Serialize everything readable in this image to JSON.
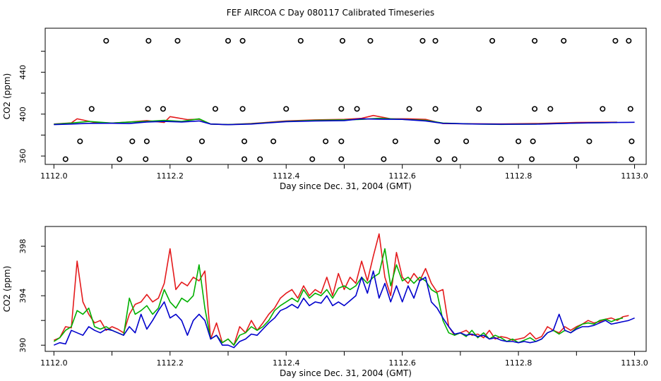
{
  "title": "FEF AIRCOA C  Day 080117  Calibrated Timeseries",
  "chart_data": [
    {
      "type": "scatter",
      "title": "FEF AIRCOA C  Day 080117  Calibrated Timeseries",
      "xlabel": "Day since Dec. 31, 2004 (GMT)",
      "ylabel": "CO2 (ppm)",
      "xlim": [
        1111.985,
        1113.02
      ],
      "ylim": [
        352,
        482
      ],
      "xticks": [
        "1112.0",
        "1112.2",
        "1112.4",
        "1112.6",
        "1112.8",
        "1113.0"
      ],
      "yticks": [
        "360",
        "400",
        "440"
      ],
      "grid": false,
      "series": [
        {
          "color": "#e41a1c",
          "kind": "line",
          "x": [
            1112.0,
            1112.03,
            1112.04,
            1112.07,
            1112.1,
            1112.13,
            1112.16,
            1112.19,
            1112.2,
            1112.23,
            1112.25,
            1112.27,
            1112.3,
            1112.34,
            1112.4,
            1112.45,
            1112.5,
            1112.53,
            1112.55,
            1112.58,
            1112.61,
            1112.64,
            1112.67,
            1112.72,
            1112.77,
            1112.83,
            1112.9,
            1112.97
          ],
          "y": [
            390.5,
            391.6,
            395.5,
            392,
            391.5,
            392.5,
            393.8,
            392,
            397.6,
            394.8,
            395.2,
            390.5,
            390,
            391,
            393.5,
            394.5,
            395,
            396,
            398.7,
            395.5,
            395.5,
            395,
            391,
            390.8,
            390.6,
            391,
            392,
            392.3
          ]
        },
        {
          "color": "#00b000",
          "kind": "line",
          "x": [
            1112.0,
            1112.03,
            1112.06,
            1112.1,
            1112.13,
            1112.16,
            1112.19,
            1112.22,
            1112.25,
            1112.27,
            1112.3,
            1112.34,
            1112.4,
            1112.45,
            1112.5,
            1112.53,
            1112.56,
            1112.6,
            1112.64,
            1112.67,
            1112.72,
            1112.77,
            1112.83,
            1112.9,
            1112.97
          ],
          "y": [
            390.3,
            391.5,
            393,
            391.5,
            392.5,
            393,
            394,
            393,
            395.5,
            390.5,
            390,
            390.8,
            393,
            394,
            394.5,
            395,
            396,
            395,
            394,
            391.5,
            390.6,
            390.2,
            390.5,
            391.5,
            392
          ]
        },
        {
          "color": "#0000cc",
          "kind": "line",
          "x": [
            1112.0,
            1112.03,
            1112.06,
            1112.1,
            1112.13,
            1112.16,
            1112.19,
            1112.22,
            1112.25,
            1112.27,
            1112.3,
            1112.34,
            1112.4,
            1112.45,
            1112.5,
            1112.53,
            1112.56,
            1112.6,
            1112.64,
            1112.67,
            1112.72,
            1112.77,
            1112.83,
            1112.9,
            1112.97,
            1113.0
          ],
          "y": [
            390,
            390.5,
            391.2,
            391.3,
            391,
            392.5,
            393,
            392.5,
            393.5,
            390.5,
            389.9,
            390.5,
            392.8,
            393.5,
            393.8,
            395.5,
            395.2,
            395,
            393.5,
            391.2,
            390.6,
            390.3,
            390.4,
            391.5,
            392,
            392.2
          ]
        },
        {
          "color": "#000000",
          "kind": "points",
          "x": [
            1112.09,
            1112.163,
            1112.213,
            1112.3,
            1112.325,
            1112.425,
            1112.497,
            1112.545,
            1112.635,
            1112.657,
            1112.755,
            1112.828,
            1112.878,
            1112.967,
            1112.99,
            1112.065,
            1112.162,
            1112.188,
            1112.278,
            1112.325,
            1112.4,
            1112.495,
            1112.522,
            1112.612,
            1112.657,
            1112.732,
            1112.828,
            1112.855,
            1112.945,
            1112.993,
            1112.045,
            1112.135,
            1112.16,
            1112.255,
            1112.328,
            1112.378,
            1112.468,
            1112.495,
            1112.588,
            1112.66,
            1112.71,
            1112.8,
            1112.825,
            1112.922,
            1112.995,
            1112.02,
            1112.113,
            1112.158,
            1112.233,
            1112.328,
            1112.355,
            1112.445,
            1112.495,
            1112.568,
            1112.663,
            1112.69,
            1112.77,
            1112.823,
            1112.9,
            1112.995
          ],
          "y": [
            470,
            470,
            470,
            470,
            470,
            470,
            470,
            470,
            470,
            470,
            470,
            470,
            470,
            470,
            470,
            405,
            405,
            405,
            405,
            405,
            405,
            405,
            405,
            405,
            405,
            405,
            405,
            405,
            405,
            405,
            374,
            374,
            374,
            374,
            374,
            374,
            374,
            374,
            374,
            374,
            374,
            374,
            374,
            374,
            374,
            357,
            357,
            357,
            357,
            357,
            357,
            357,
            357,
            357,
            357,
            357,
            357,
            357,
            357,
            357
          ]
        }
      ]
    },
    {
      "type": "line",
      "xlabel": "Day since Dec. 31, 2004 (GMT)",
      "ylabel": "CO2 (ppm)",
      "xlim": [
        1111.985,
        1113.02
      ],
      "ylim": [
        389.5,
        399.6
      ],
      "xticks": [
        "1112.0",
        "1112.2",
        "1112.4",
        "1112.6",
        "1112.8",
        "1113.0"
      ],
      "yticks": [
        "390",
        "394",
        "398"
      ],
      "grid": false,
      "series": [
        {
          "color": "#e41a1c",
          "kind": "line",
          "x": [
            1112.0,
            1112.01,
            1112.02,
            1112.03,
            1112.04,
            1112.05,
            1112.06,
            1112.07,
            1112.08,
            1112.09,
            1112.1,
            1112.11,
            1112.12,
            1112.13,
            1112.14,
            1112.15,
            1112.16,
            1112.17,
            1112.18,
            1112.19,
            1112.2,
            1112.21,
            1112.22,
            1112.23,
            1112.24,
            1112.25,
            1112.26,
            1112.27,
            1112.28,
            1112.29,
            1112.3,
            1112.31,
            1112.32,
            1112.33,
            1112.34,
            1112.35,
            1112.36,
            1112.37,
            1112.38,
            1112.39,
            1112.4,
            1112.41,
            1112.42,
            1112.43,
            1112.44,
            1112.45,
            1112.46,
            1112.47,
            1112.48,
            1112.49,
            1112.5,
            1112.51,
            1112.52,
            1112.53,
            1112.54,
            1112.55,
            1112.56,
            1112.57,
            1112.58,
            1112.59,
            1112.6,
            1112.61,
            1112.62,
            1112.63,
            1112.64,
            1112.65,
            1112.66,
            1112.67,
            1112.68,
            1112.69,
            1112.7,
            1112.71,
            1112.72,
            1112.73,
            1112.74,
            1112.75,
            1112.76,
            1112.77,
            1112.78,
            1112.79,
            1112.8,
            1112.81,
            1112.82,
            1112.83,
            1112.84,
            1112.85,
            1112.86,
            1112.87,
            1112.88,
            1112.89,
            1112.9,
            1112.91,
            1112.92,
            1112.93,
            1112.94,
            1112.95,
            1112.96,
            1112.97,
            1112.98,
            1112.99
          ],
          "y": [
            390.4,
            390.6,
            391.5,
            391.4,
            396.8,
            393.5,
            392.5,
            391.8,
            392.0,
            391.2,
            391.5,
            391.3,
            391.0,
            392.5,
            393.3,
            393.5,
            394.1,
            393.5,
            393.8,
            395.0,
            397.8,
            394.5,
            395.1,
            394.8,
            395.5,
            395.2,
            396.0,
            390.5,
            391.8,
            390.2,
            390.5,
            390.0,
            391.5,
            391.0,
            392.0,
            391.2,
            391.8,
            392.5,
            393.0,
            393.8,
            394.2,
            394.5,
            393.8,
            394.8,
            394.0,
            394.5,
            394.2,
            395.5,
            394.0,
            395.8,
            394.5,
            395.5,
            395.0,
            396.8,
            395.2,
            397.2,
            399.0,
            395.5,
            394.0,
            397.5,
            395.5,
            395.0,
            395.8,
            395.2,
            396.2,
            395.0,
            394.3,
            394.5,
            391.5,
            390.8,
            391.0,
            391.2,
            390.8,
            390.9,
            390.6,
            391.2,
            390.5,
            390.7,
            390.6,
            390.4,
            390.5,
            390.6,
            391.0,
            390.5,
            390.7,
            391.5,
            391.2,
            391.0,
            391.5,
            391.2,
            391.5,
            391.7,
            392.0,
            391.8,
            391.9,
            392.1,
            392.2,
            392.0,
            392.3,
            392.4
          ]
        },
        {
          "color": "#00b000",
          "kind": "line",
          "x": [
            1112.0,
            1112.01,
            1112.02,
            1112.03,
            1112.04,
            1112.05,
            1112.06,
            1112.07,
            1112.08,
            1112.09,
            1112.1,
            1112.11,
            1112.12,
            1112.13,
            1112.14,
            1112.15,
            1112.16,
            1112.17,
            1112.18,
            1112.19,
            1112.2,
            1112.21,
            1112.22,
            1112.23,
            1112.24,
            1112.25,
            1112.26,
            1112.27,
            1112.28,
            1112.29,
            1112.3,
            1112.31,
            1112.32,
            1112.33,
            1112.34,
            1112.35,
            1112.36,
            1112.37,
            1112.38,
            1112.39,
            1112.4,
            1112.41,
            1112.42,
            1112.43,
            1112.44,
            1112.45,
            1112.46,
            1112.47,
            1112.48,
            1112.49,
            1112.5,
            1112.51,
            1112.52,
            1112.53,
            1112.54,
            1112.55,
            1112.56,
            1112.57,
            1112.58,
            1112.59,
            1112.6,
            1112.61,
            1112.62,
            1112.63,
            1112.64,
            1112.65,
            1112.66,
            1112.67,
            1112.68,
            1112.69,
            1112.7,
            1112.71,
            1112.72,
            1112.73,
            1112.74,
            1112.75,
            1112.76,
            1112.77,
            1112.78,
            1112.79,
            1112.8,
            1112.81,
            1112.82,
            1112.83,
            1112.84,
            1112.85,
            1112.86,
            1112.87,
            1112.88,
            1112.89,
            1112.9,
            1112.91,
            1112.92,
            1112.93,
            1112.94,
            1112.95,
            1112.96,
            1112.97,
            1112.98
          ],
          "y": [
            390.3,
            390.6,
            391.2,
            391.5,
            392.8,
            392.5,
            393.0,
            391.5,
            391.3,
            391.5,
            391.2,
            391.0,
            390.8,
            393.8,
            392.5,
            392.8,
            393.2,
            392.5,
            393.0,
            394.5,
            393.5,
            393.0,
            393.8,
            393.5,
            394.0,
            396.5,
            393.0,
            390.5,
            390.8,
            390.2,
            390.5,
            390.0,
            390.8,
            391.0,
            391.5,
            391.2,
            391.5,
            392.0,
            392.8,
            393.2,
            393.5,
            393.8,
            393.5,
            394.5,
            393.8,
            394.2,
            394.0,
            394.5,
            393.8,
            394.6,
            394.8,
            394.5,
            394.8,
            395.5,
            395.0,
            395.5,
            395.8,
            397.8,
            394.8,
            396.5,
            395.2,
            395.5,
            395.0,
            395.5,
            395.2,
            394.5,
            394.2,
            392.0,
            391.0,
            390.8,
            391.0,
            390.7,
            391.2,
            390.6,
            391.0,
            390.5,
            390.8,
            390.6,
            390.3,
            390.5,
            390.2,
            390.4,
            390.6,
            390.3,
            390.5,
            391.0,
            391.2,
            390.9,
            391.2,
            391.0,
            391.4,
            391.7,
            391.8,
            391.7,
            392.0,
            392.1,
            391.9,
            392.1,
            392.2
          ]
        },
        {
          "color": "#0000cc",
          "kind": "line",
          "x": [
            1112.0,
            1112.01,
            1112.02,
            1112.03,
            1112.04,
            1112.05,
            1112.06,
            1112.07,
            1112.08,
            1112.09,
            1112.1,
            1112.11,
            1112.12,
            1112.13,
            1112.14,
            1112.15,
            1112.16,
            1112.17,
            1112.18,
            1112.19,
            1112.2,
            1112.21,
            1112.22,
            1112.23,
            1112.24,
            1112.25,
            1112.26,
            1112.27,
            1112.28,
            1112.29,
            1112.3,
            1112.31,
            1112.32,
            1112.33,
            1112.34,
            1112.35,
            1112.36,
            1112.37,
            1112.38,
            1112.39,
            1112.4,
            1112.41,
            1112.42,
            1112.43,
            1112.44,
            1112.45,
            1112.46,
            1112.47,
            1112.48,
            1112.49,
            1112.5,
            1112.51,
            1112.52,
            1112.53,
            1112.54,
            1112.55,
            1112.56,
            1112.57,
            1112.58,
            1112.59,
            1112.6,
            1112.61,
            1112.62,
            1112.63,
            1112.64,
            1112.65,
            1112.66,
            1112.67,
            1112.68,
            1112.69,
            1112.7,
            1112.71,
            1112.72,
            1112.73,
            1112.74,
            1112.75,
            1112.76,
            1112.77,
            1112.78,
            1112.79,
            1112.8,
            1112.81,
            1112.82,
            1112.83,
            1112.84,
            1112.85,
            1112.86,
            1112.87,
            1112.88,
            1112.89,
            1112.9,
            1112.91,
            1112.92,
            1112.93,
            1112.94,
            1112.95,
            1112.96,
            1112.97,
            1112.98,
            1112.99,
            1113.0
          ],
          "y": [
            390.0,
            390.2,
            390.1,
            391.2,
            391.0,
            390.8,
            391.5,
            391.2,
            391.0,
            391.3,
            391.2,
            391.0,
            390.8,
            391.5,
            391.0,
            392.5,
            391.3,
            392.0,
            392.8,
            393.5,
            392.2,
            392.5,
            392.0,
            390.8,
            392.0,
            392.5,
            392.0,
            390.5,
            390.8,
            390.0,
            390.0,
            389.8,
            390.3,
            390.5,
            390.9,
            390.8,
            391.3,
            391.8,
            392.2,
            392.8,
            393.0,
            393.3,
            393.0,
            393.8,
            393.2,
            393.5,
            393.4,
            394.0,
            393.2,
            393.5,
            393.2,
            393.6,
            394.0,
            395.5,
            394.2,
            396.0,
            393.8,
            395.0,
            393.5,
            394.8,
            393.5,
            394.8,
            393.8,
            395.2,
            395.5,
            393.5,
            393.0,
            392.2,
            391.5,
            390.9,
            391.0,
            390.8,
            390.9,
            390.7,
            390.8,
            390.5,
            390.6,
            390.4,
            390.3,
            390.3,
            390.2,
            390.3,
            390.2,
            390.3,
            390.5,
            391.0,
            391.2,
            392.5,
            391.2,
            391.0,
            391.3,
            391.5,
            391.5,
            391.6,
            391.8,
            392.0,
            391.7,
            391.8,
            391.9,
            392.0,
            392.2
          ]
        }
      ]
    }
  ]
}
